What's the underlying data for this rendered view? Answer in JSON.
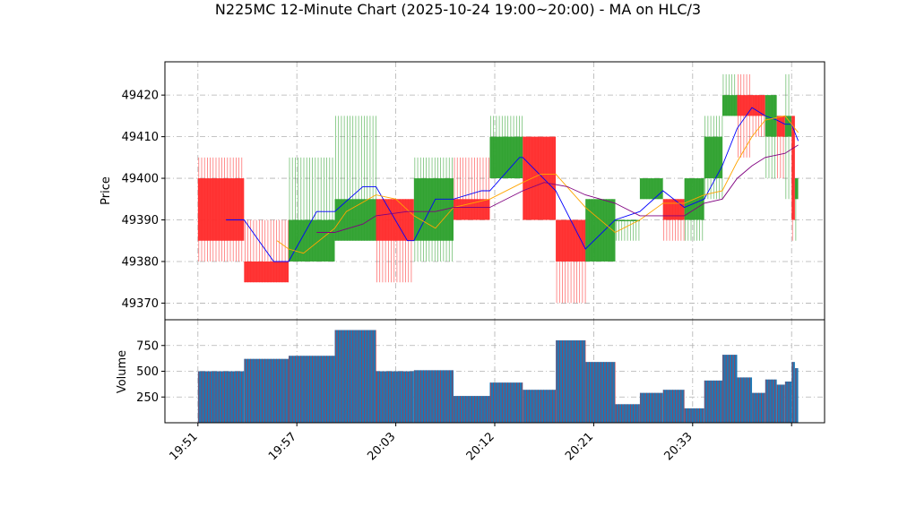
{
  "chart_data": {
    "type": "candlestick-volume",
    "title": "N225MC 12-Minute Chart (2025-10-24 19:00~20:00) - MA on HLC/3",
    "price_panel": {
      "ylabel": "Price",
      "ylim": [
        49366,
        49428
      ],
      "yticks": [
        49370,
        49380,
        49390,
        49400,
        49410,
        49420
      ],
      "grid": true
    },
    "volume_panel": {
      "ylabel": "Volume",
      "ylim": [
        0,
        1000
      ],
      "yticks": [
        250,
        500,
        750
      ],
      "grid": true
    },
    "x_tick_labels": [
      {
        "label": "19:51",
        "t": 0
      },
      {
        "label": "19:57",
        "t": 6
      },
      {
        "label": "20:03",
        "t": 12
      },
      {
        "label": "20:12",
        "t": 18
      },
      {
        "label": "20:21",
        "t": 24
      },
      {
        "label": "20:33",
        "t": 30
      },
      {
        "label": "",
        "t": 36
      }
    ],
    "x_range": [
      -2,
      38
    ],
    "colors": {
      "up": "#2ca02c",
      "down": "#ff2a2a",
      "ma_fast": "#0000ff",
      "ma_mid": "#ffa500",
      "ma_slow": "#800080",
      "volume_bar": "#1f77b4",
      "volume_edge": "#d62728"
    },
    "candles": [
      {
        "t0": 0.0,
        "t1": 2.8,
        "open": 49400,
        "high": 49405,
        "low": 49380,
        "close": 49385,
        "volume": 500
      },
      {
        "t0": 2.8,
        "t1": 5.5,
        "open": 49380,
        "high": 49390,
        "low": 49375,
        "close": 49375,
        "volume": 620
      },
      {
        "t0": 5.5,
        "t1": 8.3,
        "open": 49380,
        "high": 49405,
        "low": 49380,
        "close": 49390,
        "volume": 650
      },
      {
        "t0": 8.3,
        "t1": 10.8,
        "open": 49385,
        "high": 49415,
        "low": 49385,
        "close": 49395,
        "volume": 900
      },
      {
        "t0": 10.8,
        "t1": 13.1,
        "open": 49395,
        "high": 49395,
        "low": 49375,
        "close": 49385,
        "volume": 500
      },
      {
        "t0": 13.1,
        "t1": 15.5,
        "open": 49385,
        "high": 49405,
        "low": 49380,
        "close": 49400,
        "volume": 510
      },
      {
        "t0": 15.5,
        "t1": 17.7,
        "open": 49395,
        "high": 49405,
        "low": 49390,
        "close": 49390,
        "volume": 260
      },
      {
        "t0": 17.7,
        "t1": 19.7,
        "open": 49400,
        "high": 49415,
        "low": 49400,
        "close": 49410,
        "volume": 390
      },
      {
        "t0": 19.7,
        "t1": 21.7,
        "open": 49410,
        "high": 49410,
        "low": 49390,
        "close": 49390,
        "volume": 320
      },
      {
        "t0": 21.7,
        "t1": 23.5,
        "open": 49390,
        "high": 49390,
        "low": 49370,
        "close": 49380,
        "volume": 800
      },
      {
        "t0": 23.5,
        "t1": 25.3,
        "open": 49380,
        "high": 49395,
        "low": 49380,
        "close": 49395,
        "volume": 590
      },
      {
        "t0": 25.3,
        "t1": 26.8,
        "open": 49390,
        "high": 49390,
        "low": 49385,
        "close": 49390,
        "volume": 180
      },
      {
        "t0": 26.8,
        "t1": 28.2,
        "open": 49395,
        "high": 49400,
        "low": 49395,
        "close": 49400,
        "volume": 290
      },
      {
        "t0": 28.2,
        "t1": 29.5,
        "open": 49395,
        "high": 49395,
        "low": 49385,
        "close": 49390,
        "volume": 320
      },
      {
        "t0": 29.5,
        "t1": 30.7,
        "open": 49390,
        "high": 49400,
        "low": 49385,
        "close": 49400,
        "volume": 140
      },
      {
        "t0": 30.7,
        "t1": 31.8,
        "open": 49400,
        "high": 49415,
        "low": 49395,
        "close": 49410,
        "volume": 410
      },
      {
        "t0": 31.8,
        "t1": 32.7,
        "open": 49415,
        "high": 49425,
        "low": 49415,
        "close": 49420,
        "volume": 660
      },
      {
        "t0": 32.7,
        "t1": 33.6,
        "open": 49420,
        "high": 49425,
        "low": 49405,
        "close": 49415,
        "volume": 440
      },
      {
        "t0": 33.6,
        "t1": 34.4,
        "open": 49420,
        "high": 49420,
        "low": 49410,
        "close": 49415,
        "volume": 290
      },
      {
        "t0": 34.4,
        "t1": 35.1,
        "open": 49410,
        "high": 49420,
        "low": 49400,
        "close": 49420,
        "volume": 420
      },
      {
        "t0": 35.1,
        "t1": 35.6,
        "open": 49415,
        "high": 49415,
        "low": 49400,
        "close": 49410,
        "volume": 370
      },
      {
        "t0": 35.6,
        "t1": 36.0,
        "open": 49410,
        "high": 49425,
        "low": 49395,
        "close": 49415,
        "volume": 400
      },
      {
        "t0": 36.0,
        "t1": 36.2,
        "open": 49415,
        "high": 49415,
        "low": 49385,
        "close": 49390,
        "volume": 590
      },
      {
        "t0": 36.2,
        "t1": 36.4,
        "open": 49395,
        "high": 49400,
        "low": 49385,
        "close": 49400,
        "volume": 530
      }
    ],
    "ma_series": [
      {
        "color": "ma_fast",
        "points": [
          [
            1.7,
            49390
          ],
          [
            2.8,
            49390
          ],
          [
            4.6,
            49380
          ],
          [
            5.5,
            49380
          ],
          [
            7.2,
            49392
          ],
          [
            8.3,
            49392
          ],
          [
            10.0,
            49398
          ],
          [
            10.8,
            49398
          ],
          [
            12.7,
            49385
          ],
          [
            13.1,
            49385
          ],
          [
            14.4,
            49395
          ],
          [
            15.5,
            49395
          ],
          [
            17.2,
            49397
          ],
          [
            17.7,
            49397
          ],
          [
            19.5,
            49405
          ],
          [
            19.7,
            49405
          ],
          [
            21.7,
            49397
          ],
          [
            23.5,
            49383
          ],
          [
            25.3,
            49390
          ],
          [
            26.8,
            49392
          ],
          [
            28.2,
            49397
          ],
          [
            29.5,
            49393
          ],
          [
            30.7,
            49395
          ],
          [
            31.8,
            49403
          ],
          [
            32.7,
            49412
          ],
          [
            33.6,
            49417
          ],
          [
            34.4,
            49415
          ],
          [
            35.1,
            49414
          ],
          [
            35.6,
            49413
          ],
          [
            36.0,
            49413
          ],
          [
            36.4,
            49409
          ]
        ]
      },
      {
        "color": "ma_mid",
        "points": [
          [
            4.8,
            49385
          ],
          [
            5.5,
            49383
          ],
          [
            6.4,
            49382
          ],
          [
            8.3,
            49388
          ],
          [
            9.0,
            49392
          ],
          [
            10.8,
            49396
          ],
          [
            12.0,
            49395
          ],
          [
            13.1,
            49391
          ],
          [
            14.4,
            49388
          ],
          [
            15.5,
            49393
          ],
          [
            17.7,
            49395
          ],
          [
            19.7,
            49399
          ],
          [
            20.8,
            49401
          ],
          [
            21.7,
            49401
          ],
          [
            23.5,
            49393
          ],
          [
            25.3,
            49387
          ],
          [
            26.8,
            49390
          ],
          [
            28.2,
            49394
          ],
          [
            29.5,
            49394
          ],
          [
            30.7,
            49396
          ],
          [
            31.8,
            49397
          ],
          [
            32.7,
            49404
          ],
          [
            33.6,
            49410
          ],
          [
            34.4,
            49414
          ],
          [
            35.6,
            49415
          ],
          [
            36.4,
            49411
          ]
        ]
      },
      {
        "color": "ma_slow",
        "points": [
          [
            7.2,
            49387
          ],
          [
            8.3,
            49387
          ],
          [
            10.0,
            49389
          ],
          [
            10.8,
            49391
          ],
          [
            12.7,
            49392
          ],
          [
            13.1,
            49392
          ],
          [
            14.4,
            49392
          ],
          [
            15.5,
            49393
          ],
          [
            17.7,
            49393
          ],
          [
            19.7,
            49397
          ],
          [
            21.0,
            49399
          ],
          [
            22.4,
            49398
          ],
          [
            23.5,
            49396
          ],
          [
            25.3,
            49394
          ],
          [
            26.8,
            49391
          ],
          [
            28.2,
            49391
          ],
          [
            29.5,
            49391
          ],
          [
            30.7,
            49394
          ],
          [
            31.8,
            49395
          ],
          [
            32.7,
            49400
          ],
          [
            33.6,
            49403
          ],
          [
            34.4,
            49405
          ],
          [
            35.6,
            49406
          ],
          [
            36.4,
            49408
          ]
        ]
      }
    ]
  }
}
